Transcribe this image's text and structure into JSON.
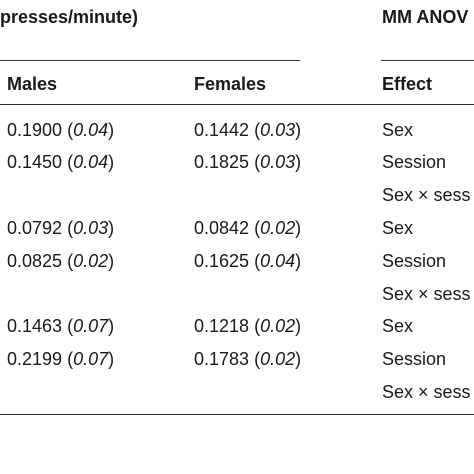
{
  "table": {
    "group_header_left": "presses/minute)",
    "group_header_right": "MM ANOV",
    "columns": {
      "males": "Males",
      "females": "Females",
      "effect": "Effect"
    },
    "rows": [
      {
        "males_value": "0.1900",
        "males_sd": "0.04",
        "females_value": "0.1442",
        "females_sd": "0.03",
        "effect": "Sex"
      },
      {
        "males_value": "0.1450",
        "males_sd": "0.04",
        "females_value": "0.1825",
        "females_sd": "0.03",
        "effect": "Session"
      },
      {
        "males_value": "",
        "males_sd": "",
        "females_value": "",
        "females_sd": "",
        "effect": "Sex × sess"
      },
      {
        "males_value": "0.0792",
        "males_sd": "0.03",
        "females_value": "0.0842",
        "females_sd": "0.02",
        "effect": "Sex"
      },
      {
        "males_value": "0.0825",
        "males_sd": "0.02",
        "females_value": "0.1625",
        "females_sd": "0.04",
        "effect": "Session"
      },
      {
        "males_value": "",
        "males_sd": "",
        "females_value": "",
        "females_sd": "",
        "effect": "Sex × sess"
      },
      {
        "males_value": "0.1463",
        "males_sd": "0.07",
        "females_value": "0.1218",
        "females_sd": "0.02",
        "effect": "Sex"
      },
      {
        "males_value": "0.2199",
        "males_sd": "0.07",
        "females_value": "0.1783",
        "females_sd": "0.02",
        "effect": "Session"
      },
      {
        "males_value": "",
        "males_sd": "",
        "females_value": "",
        "females_sd": "",
        "effect": "Sex × sess"
      }
    ]
  }
}
